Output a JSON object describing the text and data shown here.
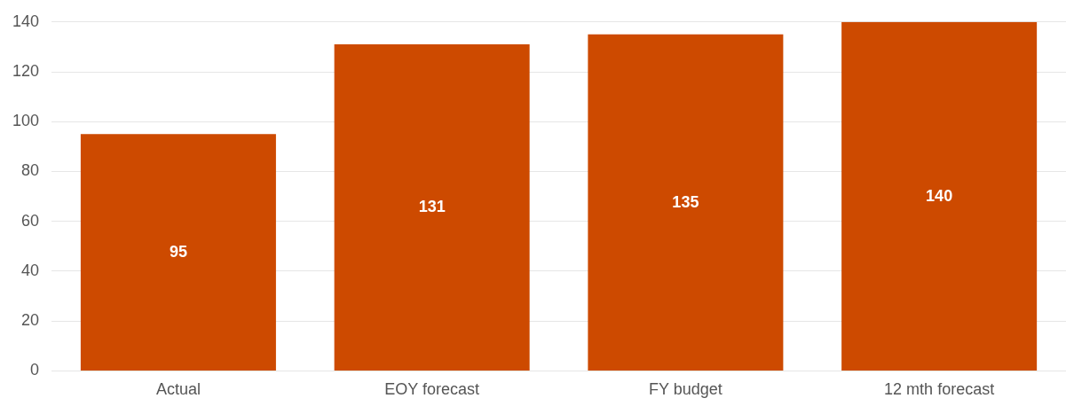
{
  "chart_data": {
    "type": "bar",
    "categories": [
      "Actual",
      "EOY forecast",
      "FY budget",
      "12 mth forecast"
    ],
    "values": [
      95,
      131,
      135,
      140
    ],
    "color": "#cd4a00",
    "ylim": [
      0,
      140
    ],
    "yticks": [
      0,
      20,
      40,
      60,
      80,
      100,
      120,
      140
    ],
    "grid": "y",
    "data_labels": true,
    "legend": false
  }
}
